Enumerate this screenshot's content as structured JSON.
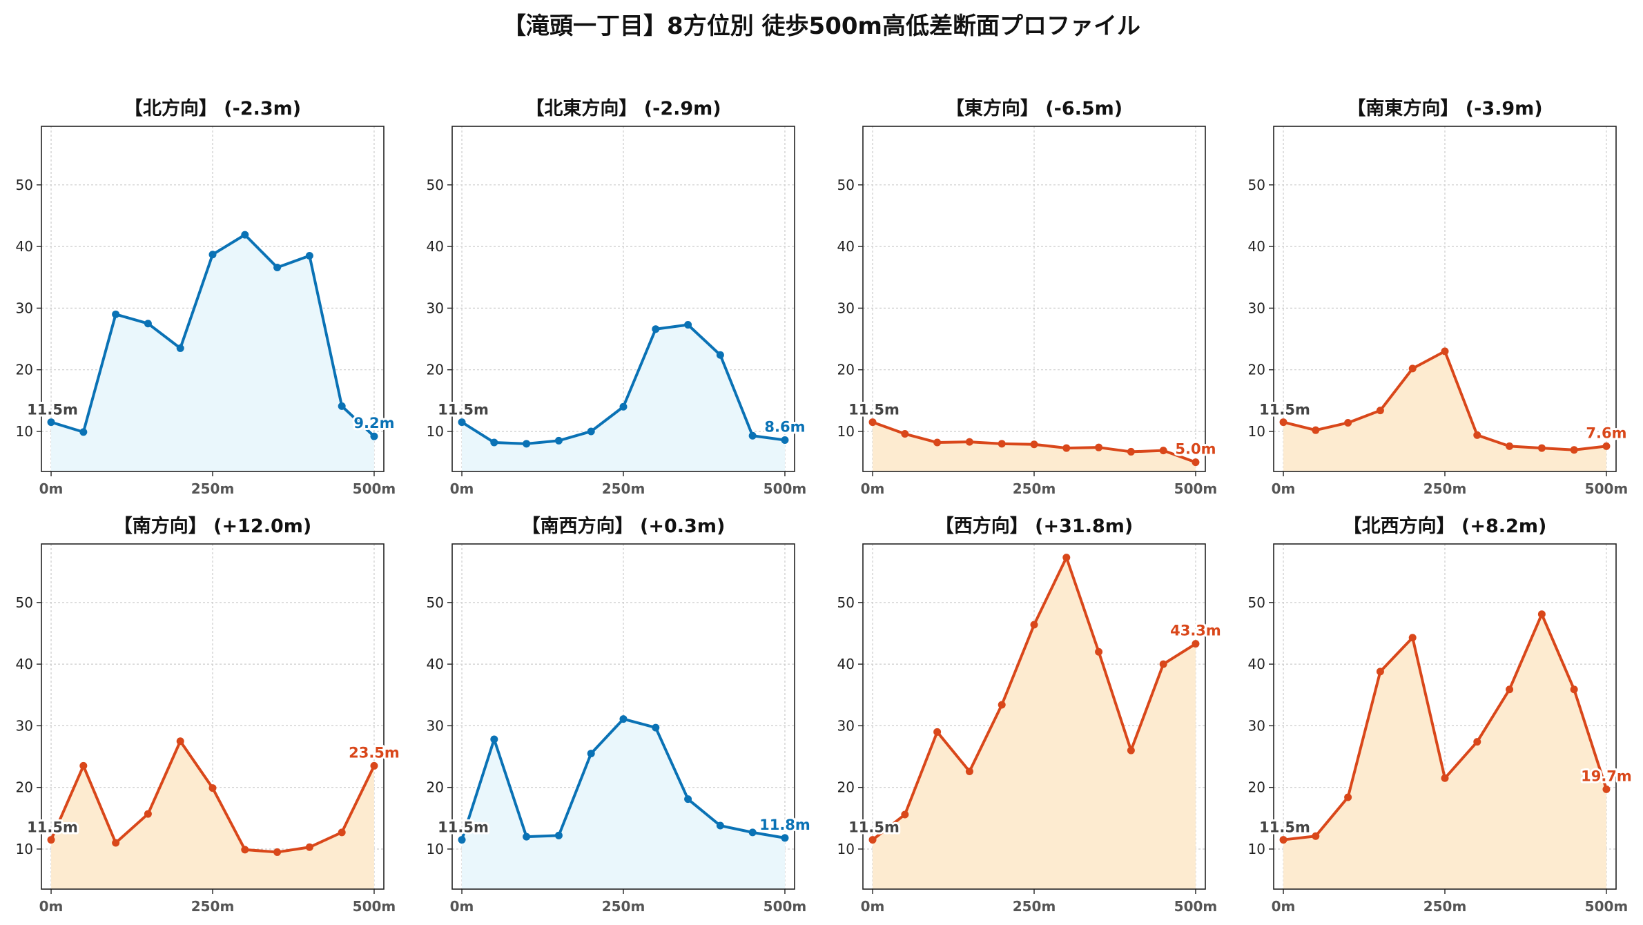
{
  "title": "【滝頭一丁目】8方位別 徒歩500m高低差断面プロファイル",
  "colors": {
    "down_line": "#0a72b5",
    "down_fill": "#eaf7fc",
    "up_line": "#d9471a",
    "up_fill": "#fdebd0",
    "start_label": "#444444"
  },
  "chart_data": [
    {
      "type": "area",
      "title": "【北方向】 (-2.3m)",
      "trend": "down",
      "x": [
        0,
        50,
        100,
        150,
        200,
        250,
        300,
        350,
        400,
        450,
        500
      ],
      "y": [
        11.5,
        9.9,
        29.0,
        27.5,
        23.5,
        38.7,
        41.9,
        36.6,
        38.5,
        14.1,
        9.2
      ],
      "start_label": "11.5m",
      "end_label": "9.2m",
      "ylim": [
        3.5,
        59.5
      ],
      "xlim": [
        -15,
        515
      ],
      "yticks": [
        10,
        20,
        30,
        40,
        50
      ],
      "xticks": [
        "0m",
        "250m",
        "500m"
      ],
      "grid": true
    },
    {
      "type": "area",
      "title": "【北東方向】 (-2.9m)",
      "trend": "down",
      "x": [
        0,
        50,
        100,
        150,
        200,
        250,
        300,
        350,
        400,
        450,
        500
      ],
      "y": [
        11.5,
        8.2,
        8.0,
        8.5,
        10.0,
        14.0,
        26.6,
        27.3,
        22.4,
        9.3,
        8.6
      ],
      "start_label": "11.5m",
      "end_label": "8.6m",
      "ylim": [
        3.5,
        59.5
      ],
      "xlim": [
        -15,
        515
      ],
      "yticks": [
        10,
        20,
        30,
        40,
        50
      ],
      "xticks": [
        "0m",
        "250m",
        "500m"
      ],
      "grid": true
    },
    {
      "type": "area",
      "title": "【東方向】 (-6.5m)",
      "trend": "down_minor",
      "x": [
        0,
        50,
        100,
        150,
        200,
        250,
        300,
        350,
        400,
        450,
        500
      ],
      "y": [
        11.5,
        9.6,
        8.2,
        8.3,
        8.0,
        7.9,
        7.3,
        7.4,
        6.7,
        6.9,
        5.0
      ],
      "start_label": "11.5m",
      "end_label": "5.0m",
      "ylim": [
        3.5,
        59.5
      ],
      "xlim": [
        -15,
        515
      ],
      "yticks": [
        10,
        20,
        30,
        40,
        50
      ],
      "xticks": [
        "0m",
        "250m",
        "500m"
      ],
      "grid": true
    },
    {
      "type": "area",
      "title": "【南東方向】 (-3.9m)",
      "trend": "down_minor",
      "x": [
        0,
        50,
        100,
        150,
        200,
        250,
        300,
        350,
        400,
        450,
        500
      ],
      "y": [
        11.5,
        10.2,
        11.4,
        13.4,
        20.2,
        23.0,
        9.4,
        7.6,
        7.3,
        7.0,
        7.6
      ],
      "start_label": "11.5m",
      "end_label": "7.6m",
      "ylim": [
        3.5,
        59.5
      ],
      "xlim": [
        -15,
        515
      ],
      "yticks": [
        10,
        20,
        30,
        40,
        50
      ],
      "xticks": [
        "0m",
        "250m",
        "500m"
      ],
      "grid": true
    },
    {
      "type": "area",
      "title": "【南方向】 (+12.0m)",
      "trend": "up",
      "x": [
        0,
        50,
        100,
        150,
        200,
        250,
        300,
        350,
        400,
        450,
        500
      ],
      "y": [
        11.5,
        23.5,
        11.0,
        15.7,
        27.5,
        19.9,
        9.9,
        9.5,
        10.3,
        12.7,
        23.5
      ],
      "start_label": "11.5m",
      "end_label": "23.5m",
      "ylim": [
        3.5,
        59.5
      ],
      "xlim": [
        -15,
        515
      ],
      "yticks": [
        10,
        20,
        30,
        40,
        50
      ],
      "xticks": [
        "0m",
        "250m",
        "500m"
      ],
      "grid": true
    },
    {
      "type": "area",
      "title": "【南西方向】 (+0.3m)",
      "trend": "flat",
      "x": [
        0,
        50,
        100,
        150,
        200,
        250,
        300,
        350,
        400,
        450,
        500
      ],
      "y": [
        11.5,
        27.8,
        12.0,
        12.2,
        25.5,
        31.1,
        29.7,
        18.1,
        13.8,
        12.7,
        11.8
      ],
      "start_label": "11.5m",
      "end_label": "11.8m",
      "ylim": [
        3.5,
        59.5
      ],
      "xlim": [
        -15,
        515
      ],
      "yticks": [
        10,
        20,
        30,
        40,
        50
      ],
      "xticks": [
        "0m",
        "250m",
        "500m"
      ],
      "grid": true
    },
    {
      "type": "area",
      "title": "【西方向】 (+31.8m)",
      "trend": "up",
      "x": [
        0,
        50,
        100,
        150,
        200,
        250,
        300,
        350,
        400,
        450,
        500
      ],
      "y": [
        11.5,
        15.6,
        29.0,
        22.6,
        33.4,
        46.4,
        57.3,
        42.0,
        26.0,
        40.0,
        43.3
      ],
      "start_label": "11.5m",
      "end_label": "43.3m",
      "ylim": [
        3.5,
        59.5
      ],
      "xlim": [
        -15,
        515
      ],
      "yticks": [
        10,
        20,
        30,
        40,
        50
      ],
      "xticks": [
        "0m",
        "250m",
        "500m"
      ],
      "grid": true
    },
    {
      "type": "area",
      "title": "【北西方向】 (+8.2m)",
      "trend": "up",
      "x": [
        0,
        50,
        100,
        150,
        200,
        250,
        300,
        350,
        400,
        450,
        500
      ],
      "y": [
        11.5,
        12.1,
        18.4,
        38.8,
        44.3,
        21.5,
        27.4,
        35.9,
        48.1,
        35.9,
        19.7
      ],
      "start_label": "11.5m",
      "end_label": "19.7m",
      "ylim": [
        3.5,
        59.5
      ],
      "xlim": [
        -15,
        515
      ],
      "yticks": [
        10,
        20,
        30,
        40,
        50
      ],
      "xticks": [
        "0m",
        "250m",
        "500m"
      ],
      "grid": true
    }
  ]
}
